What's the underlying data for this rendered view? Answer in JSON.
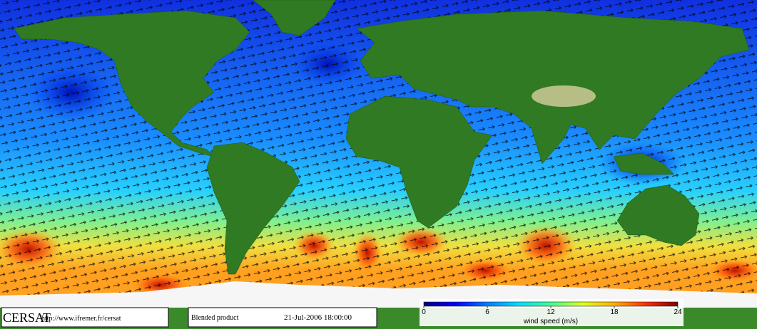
{
  "footer": {
    "logo": "CERSAT",
    "url": "http://www.ifremer.fr/cersat",
    "product": "Blended product",
    "datetime": "21-Jul-2006 18:00:00"
  },
  "colorbar": {
    "label": "wind speed (m/s)",
    "range": [
      0,
      24
    ],
    "ticks": [
      0,
      6,
      12,
      18,
      24
    ],
    "colors": [
      "#00007f",
      "#0000ff",
      "#0080ff",
      "#00e0ff",
      "#40ff90",
      "#e0ff20",
      "#ffb000",
      "#ff3000",
      "#800000"
    ]
  }
}
